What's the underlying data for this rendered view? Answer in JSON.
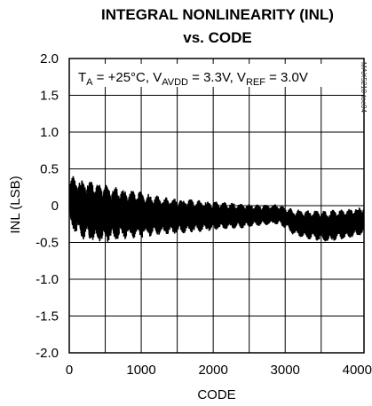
{
  "chart_data": {
    "type": "line",
    "title_line1": "INTEGRAL NONLINEARITY (INL)",
    "title_line2": "vs. CODE",
    "xlabel": "CODE",
    "ylabel": "INL (LSB)",
    "xlim": [
      0,
      4095
    ],
    "ylim": [
      -2.0,
      2.0
    ],
    "x_ticks": [
      0,
      1000,
      2000,
      3000,
      4000
    ],
    "x_tick_labels": [
      "0",
      "1000",
      "2000",
      "3000",
      "4000"
    ],
    "y_ticks": [
      2.0,
      1.5,
      1.0,
      0.5,
      0,
      -0.5,
      -1.0,
      -1.5,
      -2.0
    ],
    "y_tick_labels": [
      "2.0",
      "1.5",
      "1.0",
      "0.5",
      "0",
      "-0.5",
      "-1.0",
      "-1.5",
      "-2.0"
    ],
    "x_grid": [
      500,
      1000,
      1500,
      2000,
      2500,
      3000,
      3500
    ],
    "y_grid": [
      1.5,
      1.0,
      0.5,
      0,
      -0.5,
      -1.0,
      -1.5
    ],
    "conditions": {
      "t": "T",
      "t_sub": "A",
      "t_val": " = +25°C, ",
      "v1": "V",
      "v1_sub": "AVDD",
      "v1_val": " = 3.3V, ",
      "v2": "V",
      "v2_sub": "REF",
      "v2_val": " = 3.0V"
    },
    "side_label": "MAX5210 toc04",
    "series": [
      {
        "envelope": {
          "x": [
            0,
            150,
            300,
            500,
            800,
            1000,
            1300,
            1600,
            2000,
            2300,
            2600,
            2900,
            3100,
            3300,
            3600,
            3900,
            4095
          ],
          "upper": [
            0.42,
            0.38,
            0.36,
            0.3,
            0.22,
            0.2,
            0.12,
            0.1,
            0.06,
            0.04,
            0.02,
            0.02,
            -0.04,
            -0.06,
            -0.06,
            -0.04,
            0.0
          ],
          "lower": [
            -0.32,
            -0.45,
            -0.5,
            -0.5,
            -0.45,
            -0.44,
            -0.4,
            -0.38,
            -0.34,
            -0.32,
            -0.28,
            -0.26,
            -0.4,
            -0.46,
            -0.5,
            -0.44,
            -0.4
          ]
        },
        "color": "#000000"
      }
    ]
  }
}
